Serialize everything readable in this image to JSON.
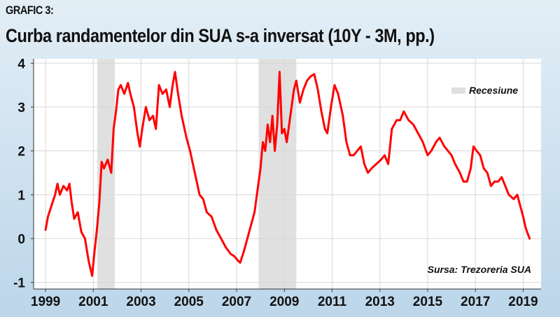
{
  "header": {
    "label": "GRAFIC 3:",
    "title": "Curba randamentelor din SUA s-a inversat (10Y - 3M, pp.)"
  },
  "colors": {
    "series": "#ff0000",
    "recession": "#e0e0e0",
    "grid": "#d7d7d7",
    "plot_background": "#ffffff"
  },
  "chart_data": {
    "type": "line",
    "title": "Curba randamentelor din SUA s-a inversat (10Y - 3M, pp.)",
    "xlabel": "",
    "ylabel": "",
    "xlim": [
      1998.5,
      2019.75
    ],
    "ylim": [
      -1.15,
      4.1
    ],
    "x_ticks": [
      1999,
      2001,
      2003,
      2005,
      2007,
      2009,
      2011,
      2013,
      2015,
      2017,
      2019
    ],
    "y_ticks": [
      -1,
      0,
      1,
      2,
      3,
      4
    ],
    "grid": true,
    "legend": {
      "placement": "top-right",
      "entries": [
        {
          "label": "Recesiune",
          "kind": "shaded-band"
        }
      ]
    },
    "annotations": [
      "Sursa: Trezoreria SUA"
    ],
    "recessions": [
      [
        2001.17,
        2001.9
      ],
      [
        2007.92,
        2009.5
      ]
    ],
    "series": [
      {
        "values": [
          [
            1999.0,
            0.2
          ],
          [
            1999.1,
            0.5
          ],
          [
            1999.25,
            0.75
          ],
          [
            1999.4,
            1.0
          ],
          [
            1999.5,
            1.25
          ],
          [
            1999.6,
            1.0
          ],
          [
            1999.75,
            1.2
          ],
          [
            1999.9,
            1.1
          ],
          [
            2000.0,
            1.25
          ],
          [
            2000.1,
            0.8
          ],
          [
            2000.2,
            0.45
          ],
          [
            2000.35,
            0.6
          ],
          [
            2000.5,
            0.15
          ],
          [
            2000.65,
            0.0
          ],
          [
            2000.8,
            -0.5
          ],
          [
            2000.95,
            -0.85
          ],
          [
            2001.05,
            -0.3
          ],
          [
            2001.15,
            0.2
          ],
          [
            2001.25,
            0.8
          ],
          [
            2001.35,
            1.75
          ],
          [
            2001.45,
            1.6
          ],
          [
            2001.6,
            1.8
          ],
          [
            2001.75,
            1.5
          ],
          [
            2001.85,
            2.5
          ],
          [
            2001.95,
            2.9
          ],
          [
            2002.05,
            3.4
          ],
          [
            2002.15,
            3.5
          ],
          [
            2002.3,
            3.3
          ],
          [
            2002.45,
            3.55
          ],
          [
            2002.55,
            3.3
          ],
          [
            2002.7,
            3.0
          ],
          [
            2002.85,
            2.4
          ],
          [
            2002.95,
            2.1
          ],
          [
            2003.05,
            2.5
          ],
          [
            2003.2,
            3.0
          ],
          [
            2003.35,
            2.7
          ],
          [
            2003.5,
            2.8
          ],
          [
            2003.62,
            2.5
          ],
          [
            2003.75,
            3.5
          ],
          [
            2003.9,
            3.3
          ],
          [
            2004.05,
            3.4
          ],
          [
            2004.2,
            3.0
          ],
          [
            2004.32,
            3.5
          ],
          [
            2004.42,
            3.8
          ],
          [
            2004.55,
            3.3
          ],
          [
            2004.7,
            2.8
          ],
          [
            2004.9,
            2.3
          ],
          [
            2005.05,
            2.0
          ],
          [
            2005.25,
            1.5
          ],
          [
            2005.45,
            1.0
          ],
          [
            2005.6,
            0.9
          ],
          [
            2005.75,
            0.6
          ],
          [
            2005.95,
            0.5
          ],
          [
            2006.15,
            0.2
          ],
          [
            2006.35,
            0.0
          ],
          [
            2006.55,
            -0.2
          ],
          [
            2006.75,
            -0.35
          ],
          [
            2006.9,
            -0.4
          ],
          [
            2007.05,
            -0.5
          ],
          [
            2007.15,
            -0.55
          ],
          [
            2007.3,
            -0.3
          ],
          [
            2007.45,
            0.0
          ],
          [
            2007.6,
            0.3
          ],
          [
            2007.75,
            0.6
          ],
          [
            2007.9,
            1.2
          ],
          [
            2008.0,
            1.6
          ],
          [
            2008.1,
            2.2
          ],
          [
            2008.2,
            2.0
          ],
          [
            2008.3,
            2.6
          ],
          [
            2008.4,
            2.2
          ],
          [
            2008.5,
            2.8
          ],
          [
            2008.6,
            2.0
          ],
          [
            2008.7,
            2.6
          ],
          [
            2008.8,
            3.8
          ],
          [
            2008.9,
            2.4
          ],
          [
            2009.0,
            2.5
          ],
          [
            2009.1,
            2.2
          ],
          [
            2009.2,
            2.6
          ],
          [
            2009.3,
            3.0
          ],
          [
            2009.4,
            3.4
          ],
          [
            2009.5,
            3.6
          ],
          [
            2009.65,
            3.1
          ],
          [
            2009.8,
            3.4
          ],
          [
            2009.95,
            3.6
          ],
          [
            2010.1,
            3.7
          ],
          [
            2010.25,
            3.75
          ],
          [
            2010.4,
            3.4
          ],
          [
            2010.55,
            2.9
          ],
          [
            2010.7,
            2.5
          ],
          [
            2010.8,
            2.4
          ],
          [
            2010.95,
            3.0
          ],
          [
            2011.1,
            3.5
          ],
          [
            2011.25,
            3.3
          ],
          [
            2011.45,
            2.8
          ],
          [
            2011.6,
            2.2
          ],
          [
            2011.75,
            1.9
          ],
          [
            2011.9,
            1.9
          ],
          [
            2012.05,
            2.0
          ],
          [
            2012.2,
            2.1
          ],
          [
            2012.35,
            1.7
          ],
          [
            2012.5,
            1.5
          ],
          [
            2012.65,
            1.6
          ],
          [
            2012.85,
            1.7
          ],
          [
            2013.05,
            1.8
          ],
          [
            2013.2,
            1.9
          ],
          [
            2013.35,
            1.7
          ],
          [
            2013.5,
            2.5
          ],
          [
            2013.7,
            2.7
          ],
          [
            2013.85,
            2.7
          ],
          [
            2014.0,
            2.9
          ],
          [
            2014.2,
            2.7
          ],
          [
            2014.4,
            2.6
          ],
          [
            2014.6,
            2.4
          ],
          [
            2014.8,
            2.2
          ],
          [
            2015.0,
            1.9
          ],
          [
            2015.15,
            2.0
          ],
          [
            2015.35,
            2.2
          ],
          [
            2015.5,
            2.3
          ],
          [
            2015.7,
            2.1
          ],
          [
            2015.85,
            2.0
          ],
          [
            2016.0,
            1.9
          ],
          [
            2016.15,
            1.7
          ],
          [
            2016.35,
            1.5
          ],
          [
            2016.5,
            1.3
          ],
          [
            2016.65,
            1.3
          ],
          [
            2016.8,
            1.6
          ],
          [
            2016.92,
            2.1
          ],
          [
            2017.05,
            2.0
          ],
          [
            2017.2,
            1.9
          ],
          [
            2017.35,
            1.6
          ],
          [
            2017.5,
            1.5
          ],
          [
            2017.65,
            1.2
          ],
          [
            2017.8,
            1.3
          ],
          [
            2017.95,
            1.3
          ],
          [
            2018.1,
            1.4
          ],
          [
            2018.25,
            1.2
          ],
          [
            2018.4,
            1.0
          ],
          [
            2018.6,
            0.9
          ],
          [
            2018.75,
            1.0
          ],
          [
            2018.85,
            0.8
          ],
          [
            2019.0,
            0.5
          ],
          [
            2019.1,
            0.25
          ],
          [
            2019.2,
            0.1
          ],
          [
            2019.27,
            0.0
          ]
        ]
      }
    ]
  }
}
